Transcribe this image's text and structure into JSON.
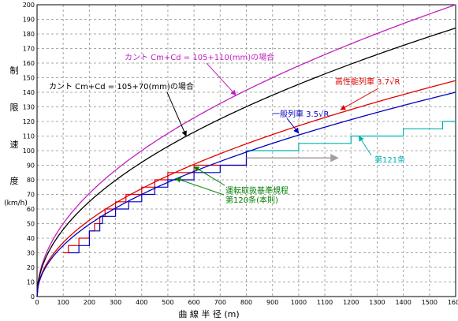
{
  "chart_data": {
    "type": "line",
    "title": "",
    "xlabel": "曲 線 半 径 (m)",
    "ylabel_chars": [
      "制",
      "限",
      "速",
      "度",
      "(km/h)"
    ],
    "xlim": [
      0,
      1600
    ],
    "ylim": [
      0,
      200
    ],
    "x_ticks": [
      0,
      100,
      200,
      300,
      400,
      500,
      600,
      700,
      800,
      900,
      1000,
      1100,
      1200,
      1300,
      1400,
      1500,
      1600
    ],
    "y_ticks": [
      0,
      10,
      20,
      30,
      40,
      50,
      60,
      70,
      80,
      90,
      100,
      110,
      120,
      130,
      140,
      150,
      160,
      170,
      180,
      190,
      200
    ],
    "grid": true,
    "legend": "none",
    "series": [
      {
        "key": "cant105_110",
        "label": "カント Cm+Cd = 105+110(mm)の場合",
        "color": "#c020c0",
        "formula": "5*sqrt(R)",
        "x": [
          5,
          25,
          50,
          100,
          200,
          400,
          800,
          1600
        ],
        "values": [
          11.2,
          25,
          35.4,
          50,
          70.7,
          100,
          141.4,
          200
        ]
      },
      {
        "key": "cant105_70",
        "label": "カント Cm+Cd = 105+70(mm)の場合",
        "color": "#000000",
        "formula": "4.6*sqrt(R)",
        "x": [
          5,
          25,
          50,
          100,
          200,
          400,
          800,
          1600
        ],
        "values": [
          10.3,
          23,
          32.5,
          46,
          65.1,
          92,
          130.1,
          184
        ]
      },
      {
        "key": "high_perf",
        "label": "高性能列車 3.7√R",
        "color": "#e00000",
        "formula": "3.7*sqrt(R)",
        "x": [
          5,
          25,
          50,
          100,
          200,
          400,
          800,
          1600
        ],
        "values": [
          8.3,
          18.5,
          26.2,
          37,
          52.3,
          74,
          104.7,
          148
        ]
      },
      {
        "key": "general",
        "label": "一般列車 3.5√R",
        "color": "#0000c0",
        "formula": "3.5*sqrt(R)",
        "x": [
          5,
          25,
          50,
          100,
          200,
          400,
          800,
          1600
        ],
        "values": [
          7.8,
          17.5,
          24.7,
          35,
          49.5,
          70,
          99,
          140
        ]
      }
    ],
    "steps": [
      {
        "key": "rule120_red",
        "label": "運転取扱基準規程 第120条(本則)",
        "color": "#e00000",
        "points": [
          [
            100,
            30
          ],
          [
            120,
            30
          ],
          [
            120,
            35
          ],
          [
            160,
            35
          ],
          [
            160,
            40
          ],
          [
            200,
            40
          ],
          [
            200,
            45
          ],
          [
            220,
            45
          ],
          [
            220,
            50
          ],
          [
            240,
            50
          ],
          [
            240,
            55
          ],
          [
            260,
            55
          ],
          [
            260,
            60
          ],
          [
            300,
            60
          ],
          [
            300,
            65
          ],
          [
            340,
            65
          ],
          [
            340,
            70
          ],
          [
            400,
            70
          ],
          [
            400,
            75
          ],
          [
            450,
            75
          ],
          [
            450,
            80
          ],
          [
            500,
            80
          ],
          [
            500,
            85
          ],
          [
            600,
            85
          ],
          [
            600,
            90
          ],
          [
            800,
            90
          ],
          [
            800,
            95
          ]
        ]
      },
      {
        "key": "rule120_blue",
        "label": "運転取扱基準規程 第120条(本則)",
        "color": "#0000c0",
        "points": [
          [
            120,
            30
          ],
          [
            160,
            30
          ],
          [
            160,
            35
          ],
          [
            200,
            35
          ],
          [
            200,
            45
          ],
          [
            240,
            45
          ],
          [
            240,
            50
          ],
          [
            250,
            50
          ],
          [
            250,
            55
          ],
          [
            300,
            55
          ],
          [
            300,
            60
          ],
          [
            350,
            60
          ],
          [
            350,
            65
          ],
          [
            400,
            65
          ],
          [
            400,
            70
          ],
          [
            450,
            70
          ],
          [
            450,
            75
          ],
          [
            500,
            75
          ],
          [
            500,
            80
          ],
          [
            600,
            80
          ],
          [
            600,
            85
          ],
          [
            700,
            85
          ],
          [
            700,
            90
          ],
          [
            800,
            90
          ],
          [
            800,
            100
          ]
        ]
      },
      {
        "key": "rule121_teal",
        "label": "第121条",
        "color": "#00b0b0",
        "points": [
          [
            800,
            100
          ],
          [
            1000,
            100
          ],
          [
            1000,
            105
          ],
          [
            1200,
            105
          ],
          [
            1200,
            110
          ],
          [
            1400,
            110
          ],
          [
            1400,
            115
          ],
          [
            1550,
            115
          ],
          [
            1550,
            120
          ],
          [
            1600,
            120
          ]
        ]
      }
    ],
    "reference_arrow": {
      "color": "#a0a0a0",
      "from": [
        800,
        95
      ],
      "to": [
        1150,
        95
      ]
    },
    "annotations": [
      {
        "key": "cant105_110",
        "text": "カント Cm+Cd = 105+110(mm)の場合",
        "color": "#c020c0",
        "arrow_to": [
          760,
          138
        ]
      },
      {
        "key": "cant105_70",
        "text": "カント Cm+Cd = 105+70(mm)の場合",
        "color": "#000000",
        "arrow_to": [
          570,
          110
        ]
      },
      {
        "key": "high_perf",
        "text": "高性能列車 3.7√R",
        "color": "#e00000",
        "arrow_to": [
          1160,
          128
        ]
      },
      {
        "key": "general",
        "text": "一般列車 3.5√R",
        "color": "#0000c0",
        "arrow_to": [
          1000,
          112
        ]
      },
      {
        "key": "rule121",
        "text": "第121条",
        "color": "#00b0b0",
        "arrow_to": [
          1230,
          110
        ]
      },
      {
        "key": "rule120_line1",
        "text": "運転取扱基準規程",
        "color": "#008000",
        "arrow_to": [
          600,
          89
        ]
      },
      {
        "key": "rule120_line2",
        "text": "第120条(本則)",
        "color": "#008000",
        "arrow_to": [
          530,
          81
        ]
      }
    ]
  }
}
